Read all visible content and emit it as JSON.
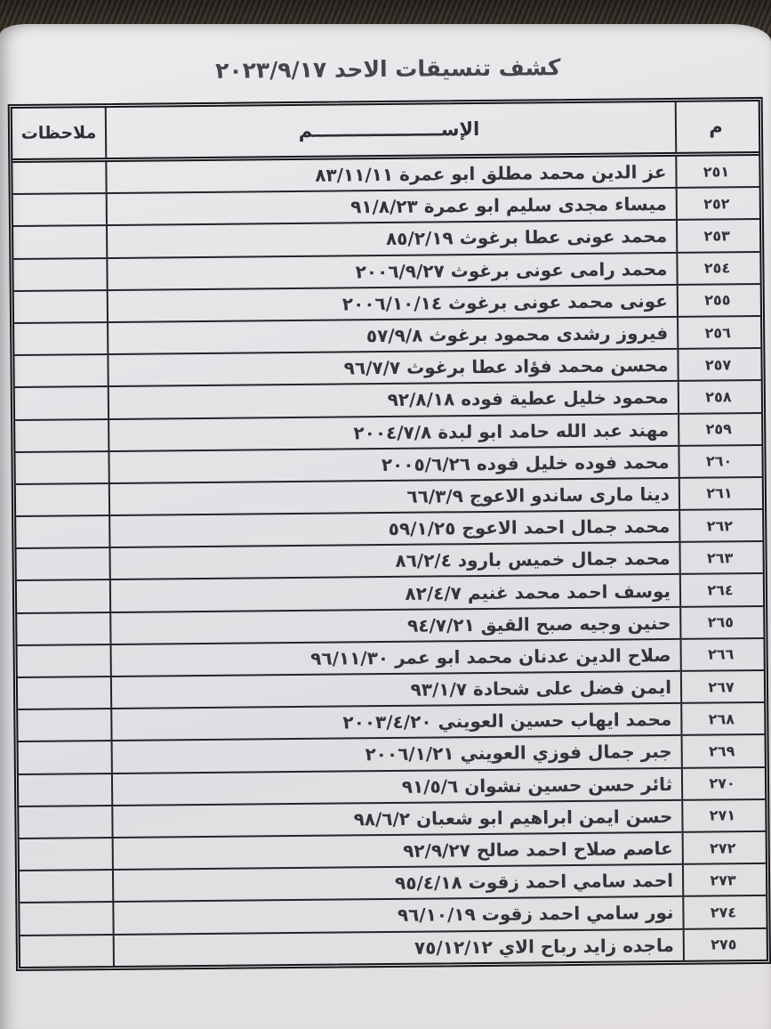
{
  "document": {
    "title": "كشف تنسيقات الاحد ٢٠٢٣/٩/١٧"
  },
  "table": {
    "header": {
      "serial": "م",
      "name": "الإســــــــــــــــــــم",
      "notes": "ملاحظات"
    },
    "rows": [
      {
        "serial": "٢٥١",
        "name": "عز الدين محمد مطلق ابو عمرة ٨٣/١١/١١",
        "notes": ""
      },
      {
        "serial": "٢٥٢",
        "name": "ميساء مجدى سليم ابو عمرة ٩١/٨/٢٣",
        "notes": ""
      },
      {
        "serial": "٢٥٣",
        "name": "محمد عونى عطا برغوث ٨٥/٢/١٩",
        "notes": ""
      },
      {
        "serial": "٢٥٤",
        "name": "محمد رامى عونى برغوث ٢٠٠٦/٩/٢٧",
        "notes": ""
      },
      {
        "serial": "٢٥٥",
        "name": "عونى محمد عونى برغوث ٢٠٠٦/١٠/١٤",
        "notes": ""
      },
      {
        "serial": "٢٥٦",
        "name": "فيروز رشدى محمود برغوث ٥٧/٩/٨",
        "notes": ""
      },
      {
        "serial": "٢٥٧",
        "name": "محسن محمد فؤاد عطا برغوث ٩٦/٧/٧",
        "notes": ""
      },
      {
        "serial": "٢٥٨",
        "name": "محمود خليل عطية فوده ٩٢/٨/١٨",
        "notes": ""
      },
      {
        "serial": "٢٥٩",
        "name": "مهند عبد الله حامد ابو لبدة ٢٠٠٤/٧/٨",
        "notes": ""
      },
      {
        "serial": "٢٦٠",
        "name": "محمد فوده خليل فوده ٢٠٠٥/٦/٢٦",
        "notes": ""
      },
      {
        "serial": "٢٦١",
        "name": "دينا مارى ساندو الاعوج ٦٦/٣/٩",
        "notes": ""
      },
      {
        "serial": "٢٦٢",
        "name": "محمد جمال احمد الاعوج ٥٩/١/٢٥",
        "notes": ""
      },
      {
        "serial": "٢٦٣",
        "name": "محمد جمال خميس بارود ٨٦/٢/٤",
        "notes": ""
      },
      {
        "serial": "٢٦٤",
        "name": "يوسف احمد محمد غنيم ٨٢/٤/٧",
        "notes": ""
      },
      {
        "serial": "٢٦٥",
        "name": "حنين وجيه صبح القيق ٩٤/٧/٢١",
        "notes": ""
      },
      {
        "serial": "٢٦٦",
        "name": "صلاح الدين عدنان محمد ابو عمر ٩٦/١١/٣٠",
        "notes": ""
      },
      {
        "serial": "٢٦٧",
        "name": "ايمن فضل على شحادة ٩٣/١/٧",
        "notes": ""
      },
      {
        "serial": "٢٦٨",
        "name": "محمد ايهاب حسين العويني ٢٠٠٣/٤/٢٠",
        "notes": ""
      },
      {
        "serial": "٢٦٩",
        "name": "جبر جمال فوزي العويني ٢٠٠٦/١/٢١",
        "notes": ""
      },
      {
        "serial": "٢٧٠",
        "name": "ثائر حسن حسين نشوان ٩١/٥/٦",
        "notes": ""
      },
      {
        "serial": "٢٧١",
        "name": "حسن ايمن ابراهيم ابو شعبان ٩٨/٦/٢",
        "notes": ""
      },
      {
        "serial": "٢٧٢",
        "name": "عاصم صلاح احمد صالح ٩٢/٩/٢٧",
        "notes": ""
      },
      {
        "serial": "٢٧٣",
        "name": "احمد سامي احمد زقوت ٩٥/٤/١٨",
        "notes": ""
      },
      {
        "serial": "٢٧٤",
        "name": "نور سامي احمد زقوت ٩٦/١٠/١٩",
        "notes": ""
      },
      {
        "serial": "٢٧٥",
        "name": "ماجده زايد رباح الاي ٧٥/١٢/١٢",
        "notes": ""
      }
    ]
  }
}
